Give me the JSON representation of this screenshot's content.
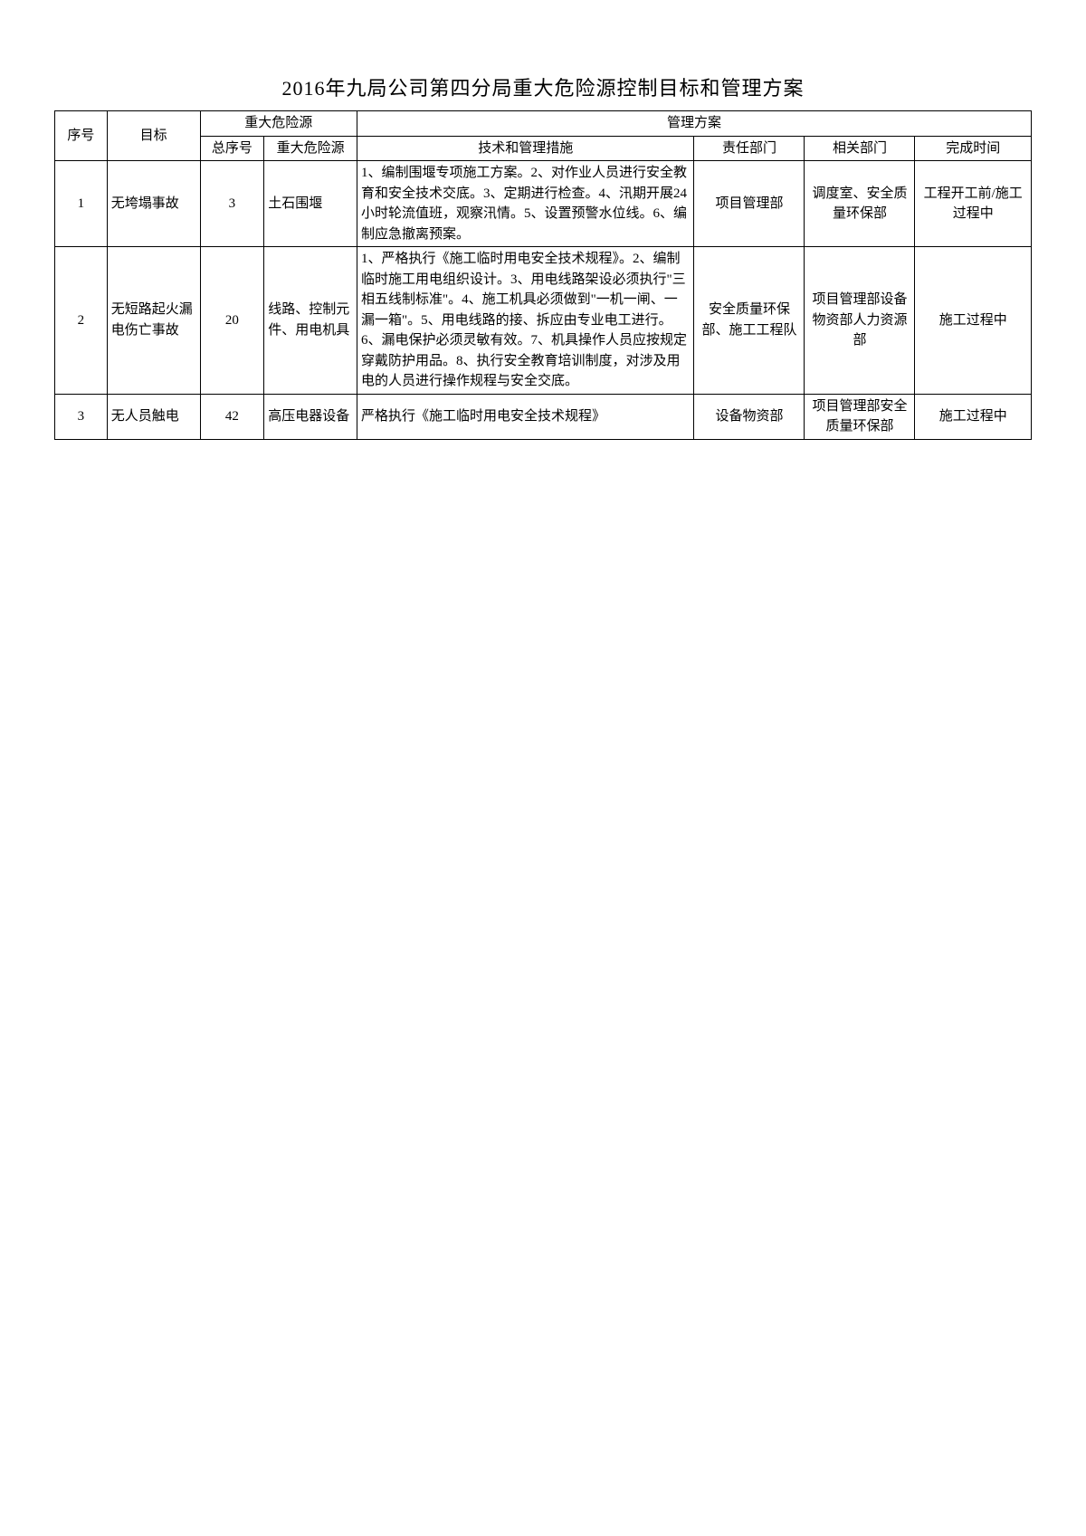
{
  "title": "2016年九局公司第四分局重大危险源控制目标和管理方案",
  "headers": {
    "seq": "序号",
    "target": "目标",
    "hazard_group": "重大危险源",
    "total_seq": "总序号",
    "hazard": "重大危险源",
    "plan_group": "管理方案",
    "measures": "技术和管理措施",
    "resp_dept": "责任部门",
    "rel_dept": "相关部门",
    "time": "完成时间"
  },
  "rows": [
    {
      "seq": "1",
      "target": "无垮塌事故",
      "total_seq": "3",
      "hazard": "土石围堰",
      "measures": "1、编制围堰专项施工方案。2、对作业人员进行安全教育和安全技术交底。3、定期进行检查。4、汛期开展24小时轮流值班，观察汛情。5、设置预警水位线。6、编制应急撤离预案。",
      "resp_dept": "项目管理部",
      "rel_dept": "调度室、安全质量环保部",
      "time": "工程开工前/施工过程中"
    },
    {
      "seq": "2",
      "target": "无短路起火漏电伤亡事故",
      "total_seq": "20",
      "hazard": "线路、控制元件、用电机具",
      "measures": "1、严格执行《施工临时用电安全技术规程》。2、编制临时施工用电组织设计。3、用电线路架设必须执行\"三相五线制标准\"。4、施工机具必须做到\"一机一闸、一漏一箱\"。5、用电线路的接、拆应由专业电工进行。6、漏电保护必须灵敏有效。7、机具操作人员应按规定穿戴防护用品。8、执行安全教育培训制度，对涉及用电的人员进行操作规程与安全交底。",
      "resp_dept": "安全质量环保部、施工工程队",
      "rel_dept": "项目管理部设备物资部人力资源部",
      "time": "施工过程中"
    },
    {
      "seq": "3",
      "target": "无人员触电",
      "total_seq": "42",
      "hazard": "高压电器设备",
      "measures": "严格执行《施工临时用电安全技术规程》",
      "resp_dept": "设备物资部",
      "rel_dept": "项目管理部安全质量环保部",
      "time": "施工过程中"
    }
  ]
}
